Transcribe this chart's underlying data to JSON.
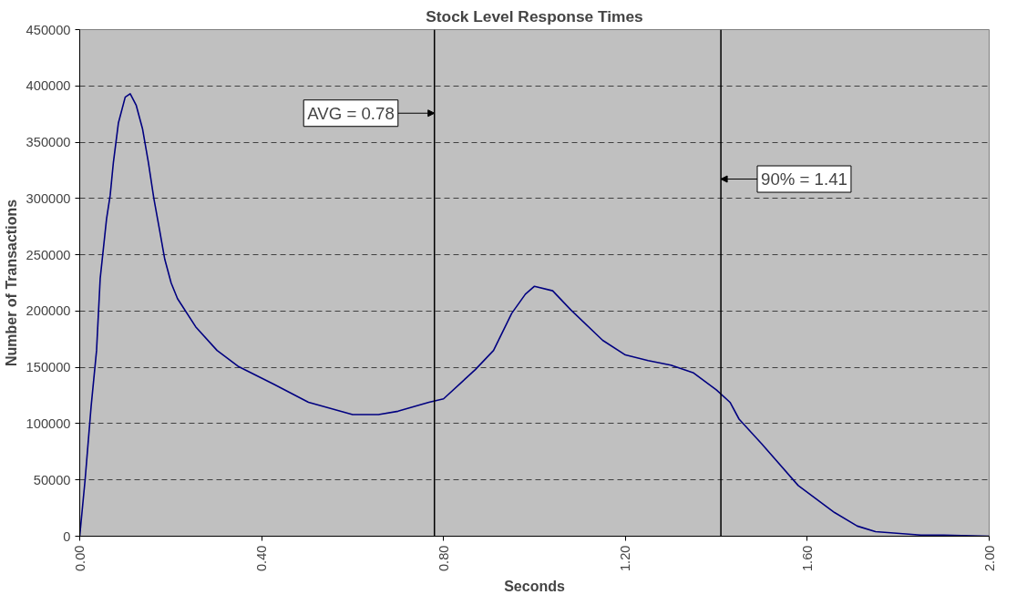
{
  "chart_data": {
    "type": "line",
    "title": "Stock Level Response Times",
    "xlabel": "Seconds",
    "ylabel": "Number of Transactions",
    "x": [
      0,
      0.012,
      0.025,
      0.037,
      0.045,
      0.059,
      0.067,
      0.074,
      0.085,
      0.1,
      0.111,
      0.124,
      0.138,
      0.151,
      0.163,
      0.176,
      0.187,
      0.201,
      0.215,
      0.255,
      0.302,
      0.348,
      0.427,
      0.503,
      0.6,
      0.657,
      0.7,
      0.768,
      0.8,
      0.87,
      0.91,
      0.95,
      0.98,
      1.0,
      1.04,
      1.08,
      1.15,
      1.2,
      1.25,
      1.3,
      1.35,
      1.4,
      1.43,
      1.45,
      1.5,
      1.58,
      1.66,
      1.71,
      1.75,
      1.85,
      1.9,
      2.0
    ],
    "series": [
      {
        "color": "#000080",
        "values": [
          0,
          51000,
          115000,
          165000,
          229000,
          282000,
          303000,
          332000,
          367000,
          390000,
          393000,
          383000,
          362000,
          332000,
          300000,
          271000,
          246000,
          225000,
          211000,
          186000,
          165000,
          151000,
          135000,
          119000,
          108000,
          108000,
          111000,
          119000,
          122000,
          148000,
          165000,
          198000,
          215000,
          222000,
          218000,
          201000,
          174000,
          161000,
          156000,
          152000,
          145000,
          130000,
          119000,
          104000,
          82000,
          45000,
          21000,
          9000,
          4000,
          1000,
          1000,
          0
        ]
      }
    ],
    "xlim": [
      0,
      2
    ],
    "xticks": [
      {
        "value": 0,
        "label": "0.00"
      },
      {
        "value": 0.4,
        "label": "0.40"
      },
      {
        "value": 0.8,
        "label": "0.80"
      },
      {
        "value": 1.2,
        "label": "1.20"
      },
      {
        "value": 1.6,
        "label": "1.60"
      },
      {
        "value": 2,
        "label": "2.00"
      }
    ],
    "ylim": [
      0,
      450000
    ],
    "yticks": [
      0,
      50000,
      100000,
      150000,
      200000,
      250000,
      300000,
      350000,
      400000,
      450000
    ],
    "grid": "y",
    "marker": "none",
    "line_style": "solid",
    "ref_lines": [
      {
        "axis": "x",
        "value": 0.78,
        "label": "AVG = 0.78",
        "color": "#000000"
      },
      {
        "axis": "x",
        "value": 1.41,
        "label": "90% = 1.41",
        "color": "#000000"
      }
    ]
  }
}
